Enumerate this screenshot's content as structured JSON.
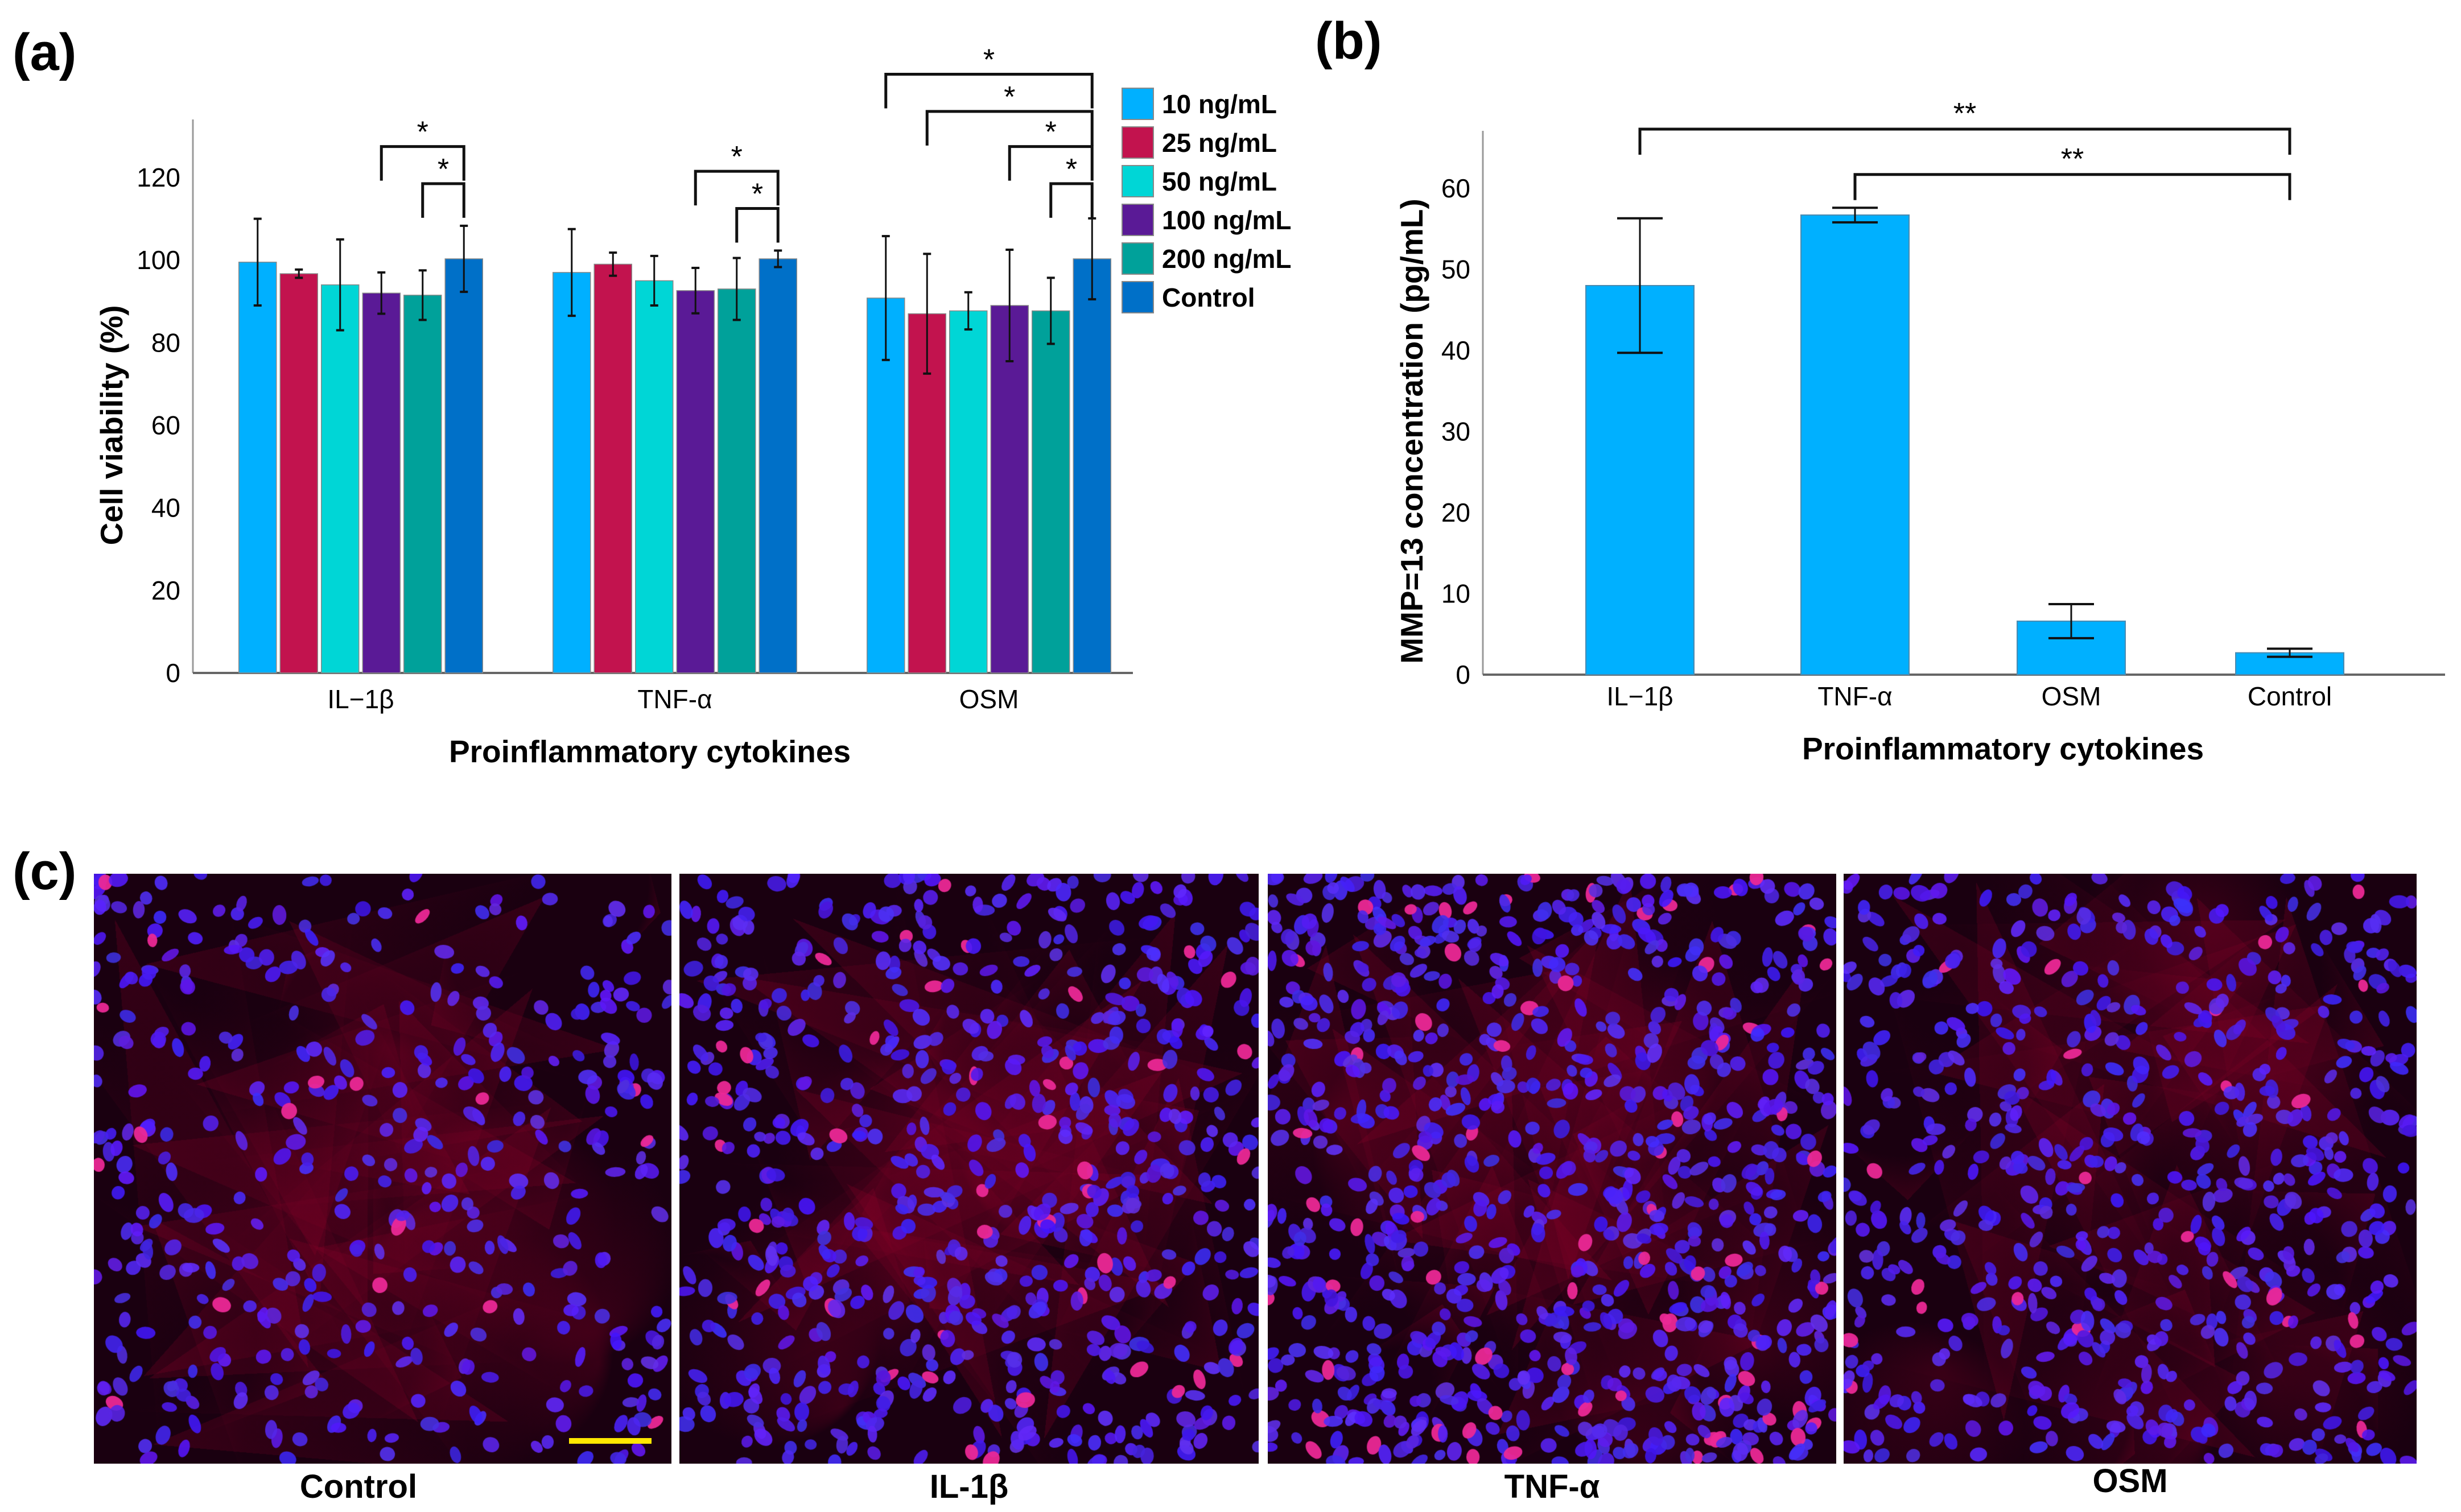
{
  "panels": {
    "a": "(a)",
    "b": "(b)",
    "c": "(c)"
  },
  "colors": {
    "10": "#00B0FF",
    "25": "#C2134E",
    "50": "#00D6D6",
    "100": "#5A1A96",
    "200": "#00A19A",
    "control": "#0070C8",
    "bar_b": "#00B0FF"
  },
  "chart_data": [
    {
      "type": "bar",
      "title": "",
      "xlabel": "Proinflammatory cytokines",
      "ylabel": "Cell viability (%)",
      "ylim": [
        0,
        133
      ],
      "yticks": [
        "0",
        "20",
        "40",
        "60",
        "80",
        "100",
        "120"
      ],
      "categories": [
        "IL−1β",
        "TNF-α",
        "OSM"
      ],
      "legend_position": "top-right",
      "series": [
        {
          "name": "10 ng/mL",
          "color_key": "10",
          "values": [
            99.5,
            97,
            90.8
          ],
          "errors": [
            10.5,
            10.5,
            15
          ]
        },
        {
          "name": "25 ng/mL",
          "color_key": "25",
          "values": [
            96.7,
            99,
            87
          ],
          "errors": [
            1,
            2.8,
            14.5
          ]
        },
        {
          "name": "50 ng/mL",
          "color_key": "50",
          "values": [
            94,
            95,
            87.7
          ],
          "errors": [
            11,
            6,
            4.5
          ]
        },
        {
          "name": "100 ng/mL",
          "color_key": "100",
          "values": [
            92,
            92.6,
            89
          ],
          "errors": [
            5,
            5.5,
            13.5
          ]
        },
        {
          "name": "200 ng/mL",
          "color_key": "200",
          "values": [
            91.5,
            93,
            87.7
          ],
          "errors": [
            6,
            7.5,
            8
          ]
        },
        {
          "name": "Control",
          "color_key": "control",
          "values": [
            100.3,
            100.3,
            100.3
          ],
          "errors": [
            8,
            2,
            9.8
          ]
        }
      ],
      "significance": [
        {
          "category": 0,
          "from_series": 3,
          "to_series": 5,
          "level": 127.5,
          "label": "*"
        },
        {
          "category": 0,
          "from_series": 4,
          "to_series": 5,
          "level": 118.5,
          "label": "*"
        },
        {
          "category": 1,
          "from_series": 3,
          "to_series": 5,
          "level": 121.5,
          "label": "*"
        },
        {
          "category": 1,
          "from_series": 4,
          "to_series": 5,
          "level": 112.5,
          "label": "*"
        },
        {
          "category": 2,
          "from_series": 0,
          "to_series": 5,
          "level": 145,
          "label": "*"
        },
        {
          "category": 2,
          "from_series": 1,
          "to_series": 5,
          "level": 136,
          "label": "*"
        },
        {
          "category": 2,
          "from_series": 3,
          "to_series": 5,
          "level": 127.5,
          "label": "*"
        },
        {
          "category": 2,
          "from_series": 4,
          "to_series": 5,
          "level": 118.5,
          "label": "*"
        }
      ]
    },
    {
      "type": "bar",
      "title": "",
      "xlabel": "Proinflammatory cytokines",
      "ylabel": "MMP=13 concentration (pg/mL)",
      "ylim": [
        0,
        67
      ],
      "yticks": [
        "0",
        "10",
        "20",
        "30",
        "40",
        "50",
        "60"
      ],
      "categories": [
        "IL−1β",
        "TNF-α",
        "OSM",
        "Control"
      ],
      "values": [
        48,
        56.7,
        6.6,
        2.7
      ],
      "errors": [
        8.3,
        0.9,
        2.1,
        0.5
      ],
      "significance": [
        {
          "from": 0,
          "to": 3,
          "level": 67.3,
          "label": "**"
        },
        {
          "from": 1,
          "to": 3,
          "level": 61.7,
          "label": "**"
        }
      ]
    }
  ],
  "micrographs": [
    {
      "label": "Control",
      "density": 420,
      "red_fraction": 0.03,
      "seed": 11
    },
    {
      "label": "IL-1β",
      "density": 700,
      "red_fraction": 0.07,
      "seed": 23
    },
    {
      "label": "TNF-α",
      "density": 900,
      "red_fraction": 0.09,
      "seed": 37
    },
    {
      "label": "OSM",
      "density": 650,
      "red_fraction": 0.04,
      "seed": 51
    }
  ]
}
